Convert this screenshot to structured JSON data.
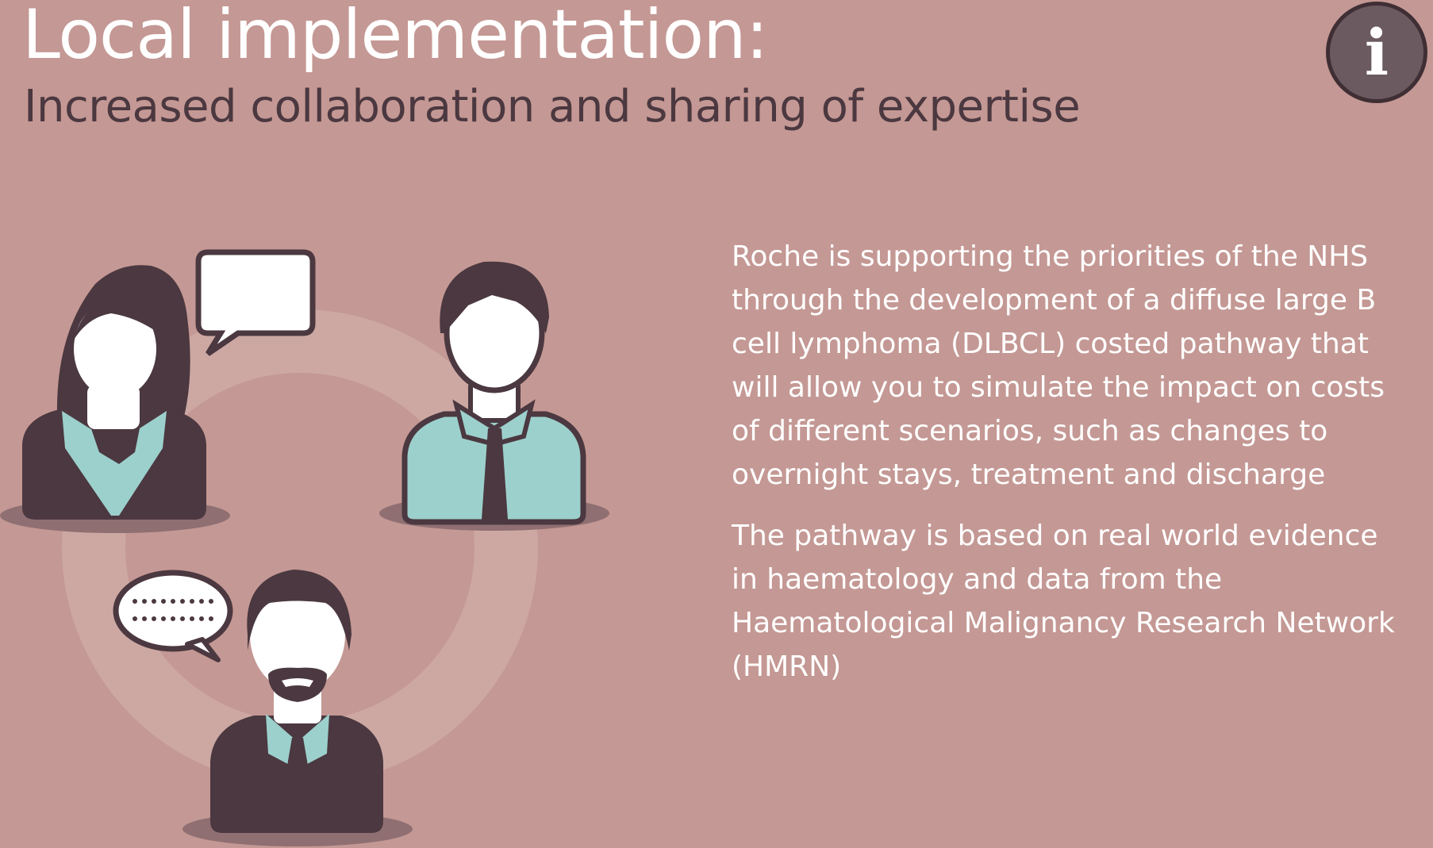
{
  "header": {
    "title": "Local implementation:",
    "subtitle": "Increased collaboration and sharing of expertise",
    "info_glyph": "i"
  },
  "content": {
    "paragraphs": [
      "Roche is supporting the priorities of the NHS  through the development of a diffuse large B cell lymphoma (DLBCL) costed pathway that will allow you to simulate the impact on costs of different scenarios, such as changes to overnight stays, treatment and discharge",
      "The pathway is based on real world evidence in haematology and data from the Haematological Malignancy Research Network (HMRN)"
    ]
  },
  "illustration": {
    "people": [
      "woman-icon",
      "man-icon",
      "bearded-man-icon"
    ],
    "bubbles": [
      "speech-bubble-icon",
      "typing-bubble-icon"
    ]
  },
  "colors": {
    "background": "#c49894",
    "dark": "#4b3840",
    "teal": "#9cd0cc",
    "white": "#ffffff",
    "ring": "#cfaaa6"
  }
}
